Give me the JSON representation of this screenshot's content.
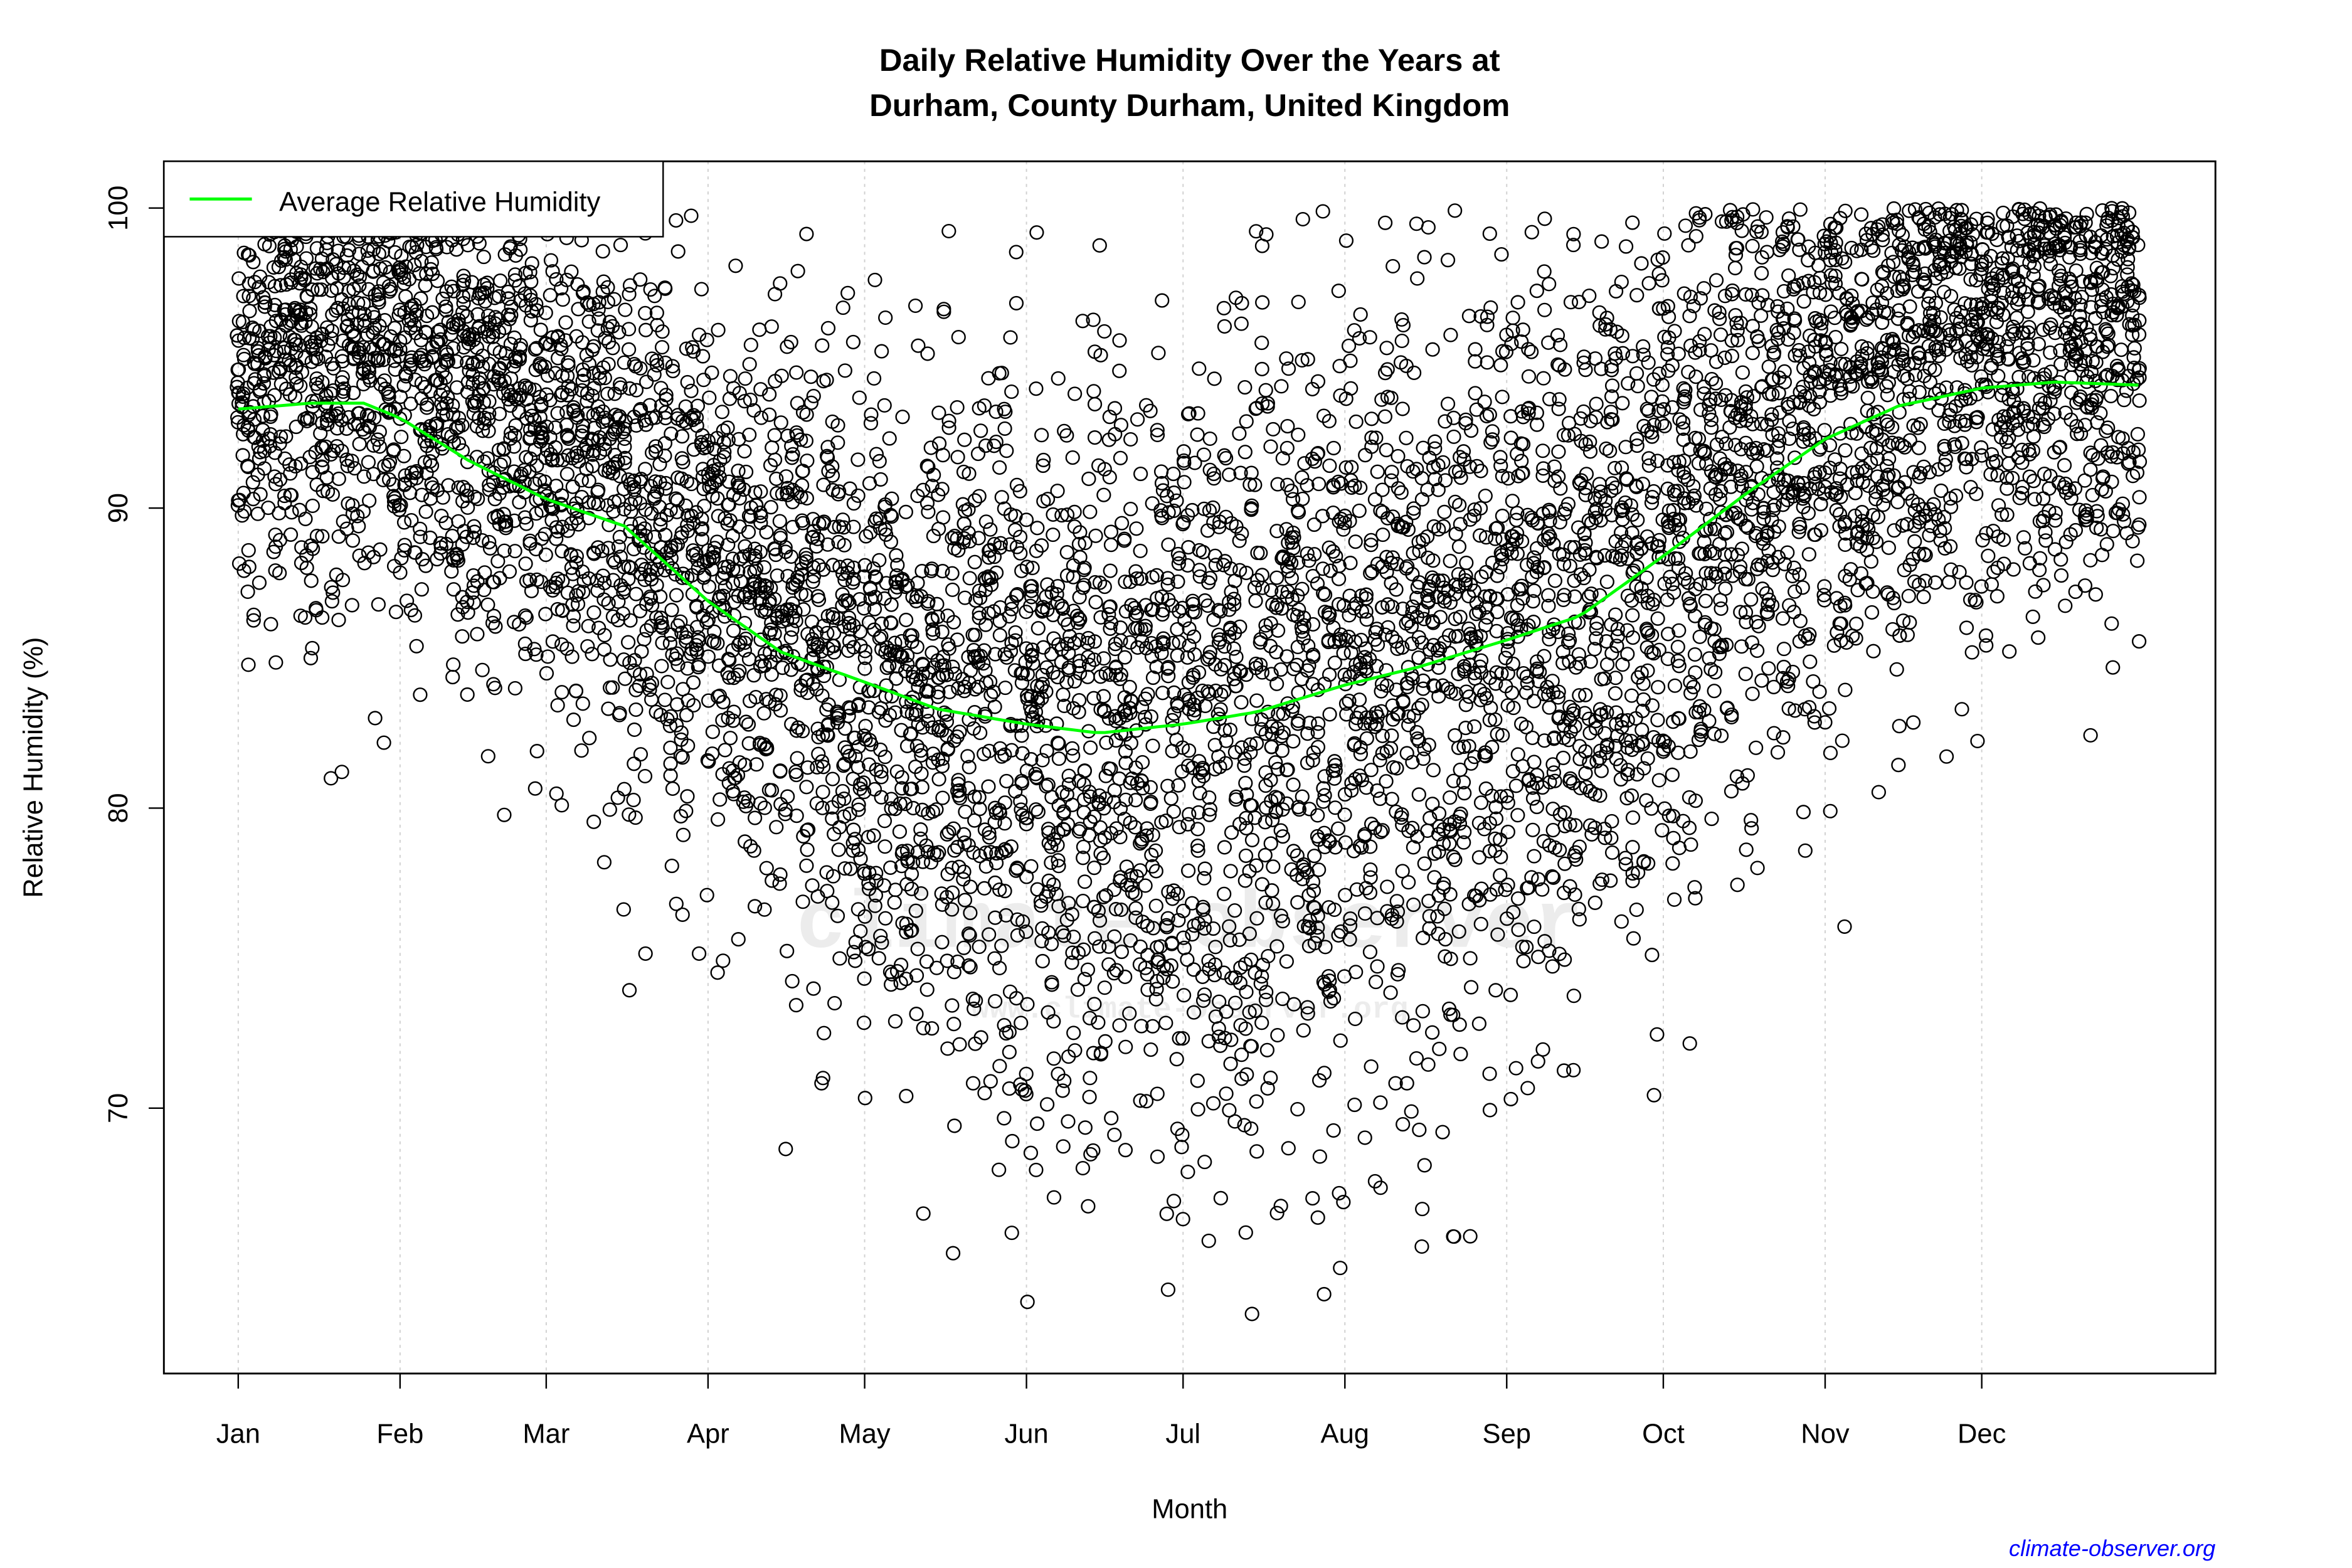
{
  "chart_data": {
    "type": "scatter",
    "title_line1": "Daily Relative Humidity Over the Years at",
    "title_line2": "Durham, County Durham, United Kingdom",
    "xlabel": "Month",
    "ylabel": "Relative Humidity  (%)",
    "ylim": [
      61.2,
      101.6
    ],
    "xlim_day_of_year": [
      -13,
      379
    ],
    "y_ticks": [
      70,
      80,
      90,
      100
    ],
    "x_ticks": [
      {
        "label": "Jan",
        "day": 1
      },
      {
        "label": "Feb",
        "day": 32
      },
      {
        "label": "Mar",
        "day": 60
      },
      {
        "label": "Apr",
        "day": 91
      },
      {
        "label": "May",
        "day": 121
      },
      {
        "label": "Jun",
        "day": 152
      },
      {
        "label": "Jul",
        "day": 182
      },
      {
        "label": "Aug",
        "day": 213
      },
      {
        "label": "Sep",
        "day": 244
      },
      {
        "label": "Oct",
        "day": 274
      },
      {
        "label": "Nov",
        "day": 305
      },
      {
        "label": "Dec",
        "day": 335
      }
    ],
    "grid": "vertical dotted at month ticks",
    "legend": {
      "placement": "top-left",
      "entries": [
        {
          "label": "Average Relative Humidity",
          "color": "#00ff00"
        }
      ]
    },
    "average_series": {
      "name": "Average Relative Humidity",
      "color": "#00ff00",
      "points": [
        [
          1,
          93.3
        ],
        [
          15,
          93.5
        ],
        [
          25,
          93.5
        ],
        [
          32,
          93.0
        ],
        [
          45,
          91.6
        ],
        [
          60,
          90.3
        ],
        [
          75,
          89.4
        ],
        [
          91,
          86.9
        ],
        [
          105,
          85.2
        ],
        [
          121,
          84.2
        ],
        [
          135,
          83.3
        ],
        [
          152,
          82.8
        ],
        [
          166,
          82.5
        ],
        [
          182,
          82.8
        ],
        [
          196,
          83.2
        ],
        [
          213,
          84.1
        ],
        [
          227,
          84.7
        ],
        [
          244,
          85.6
        ],
        [
          258,
          86.4
        ],
        [
          274,
          88.4
        ],
        [
          290,
          90.5
        ],
        [
          305,
          92.3
        ],
        [
          319,
          93.4
        ],
        [
          335,
          94.0
        ],
        [
          349,
          94.2
        ],
        [
          365,
          94.1
        ]
      ]
    },
    "scatter_series": {
      "marker": "open circle",
      "color": "#000000",
      "range_observed": [
        62.6,
        100
      ]
    }
  },
  "watermark": {
    "main": "climate-observer",
    "url": "www.climate-observer.org"
  },
  "credit": "climate-observer.org",
  "colors": {
    "average_line": "#00ff00",
    "points": "#000000",
    "credit": "#0000ff"
  }
}
